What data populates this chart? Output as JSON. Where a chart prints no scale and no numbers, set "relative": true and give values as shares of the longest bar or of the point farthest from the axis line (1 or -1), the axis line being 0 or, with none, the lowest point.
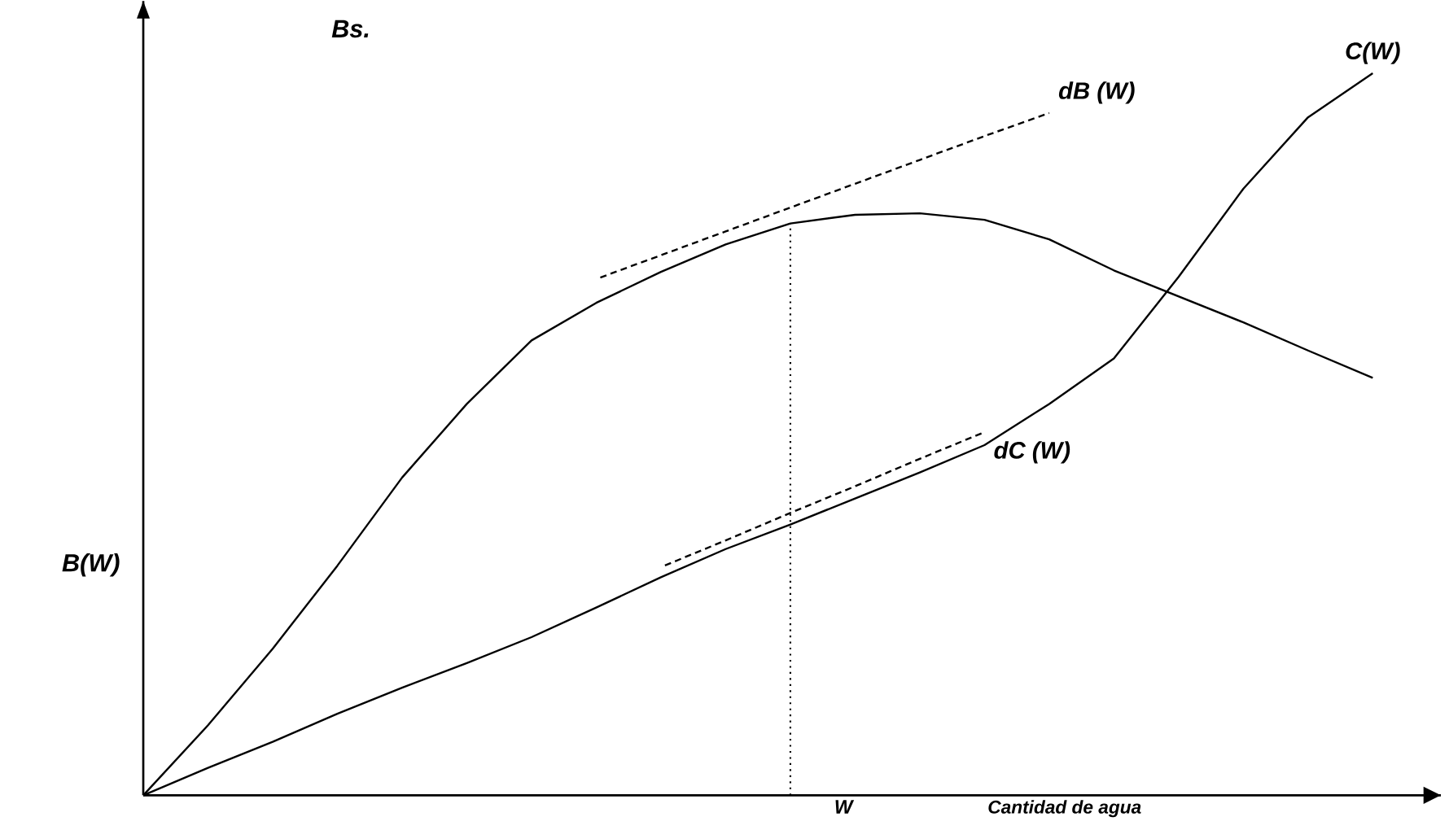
{
  "chart_data": {
    "type": "line",
    "relative": true,
    "marker": "none",
    "ylabel": "B(W)",
    "xlabel": "Cantidad de agua",
    "annotations": [
      "Bs.",
      "W"
    ],
    "categories": [
      null,
      null,
      null,
      null,
      null,
      null,
      null,
      null,
      null,
      null,
      null,
      null,
      null,
      null,
      null,
      null,
      null,
      null,
      null,
      null
    ],
    "series": [
      {
        "color": "#000000",
        "line_style": "solid",
        "values": [
          0,
          0.097,
          0.203,
          0.318,
          0.44,
          0.542,
          0.63,
          0.682,
          0.725,
          0.763,
          0.792,
          0.804,
          0.806,
          0.797,
          0.77,
          0.727,
          0.691,
          0.655,
          0.616,
          0.578
        ]
      },
      {
        "name": "C(W)",
        "color": "#000000",
        "line_style": "solid",
        "values": [
          0,
          0.038,
          0.074,
          0.113,
          0.149,
          0.183,
          0.219,
          0.26,
          0.302,
          0.341,
          0.375,
          0.411,
          0.447,
          0.485,
          0.542,
          0.605,
          0.718,
          0.84,
          0.939,
          1.0
        ]
      },
      {
        "name": "dB (W)",
        "color": "#000000",
        "line_style": "dashed",
        "values": [
          null,
          null,
          null,
          null,
          null,
          null,
          null,
          0.715,
          0.748,
          0.781,
          0.814,
          0.847,
          0.88,
          0.913,
          0.945,
          null,
          null,
          null,
          null,
          null
        ]
      },
      {
        "name": "dC (W)",
        "color": "#000000",
        "line_style": "dashed",
        "values": [
          null,
          null,
          null,
          null,
          null,
          null,
          null,
          null,
          0.316,
          0.353,
          0.391,
          0.428,
          0.466,
          0.503,
          null,
          null,
          null,
          null,
          null,
          null
        ]
      }
    ]
  }
}
